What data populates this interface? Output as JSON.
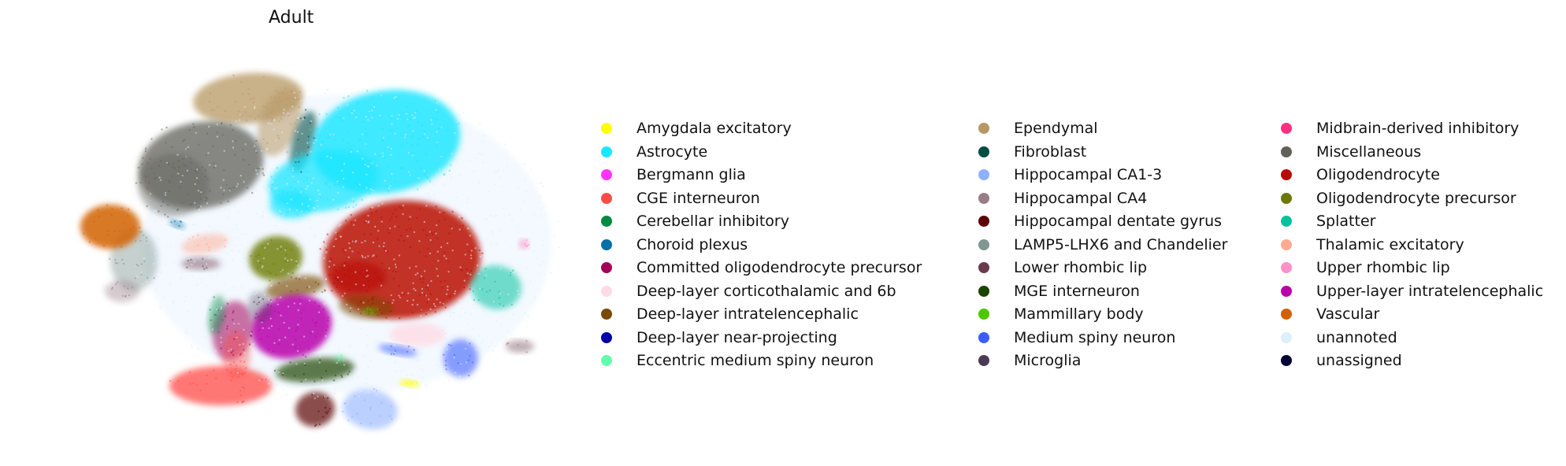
{
  "chart_data": {
    "type": "scatter",
    "title": "Adult",
    "xlabel": "",
    "ylabel": "",
    "axes_visible": false,
    "legend_placement": "right",
    "legend_columns": 3,
    "series": [
      {
        "name": "Amygdala excitatory",
        "color": "#ffff00"
      },
      {
        "name": "Astrocyte",
        "color": "#1ce6ff"
      },
      {
        "name": "Bergmann glia",
        "color": "#ff34ff"
      },
      {
        "name": "CGE interneuron",
        "color": "#ff4a46"
      },
      {
        "name": "Cerebellar inhibitory",
        "color": "#008941"
      },
      {
        "name": "Choroid plexus",
        "color": "#006fa6"
      },
      {
        "name": "Committed oligodendrocyte precursor",
        "color": "#a30059"
      },
      {
        "name": "Deep-layer corticothalamic and 6b",
        "color": "#ffdbe5"
      },
      {
        "name": "Deep-layer intratelencephalic",
        "color": "#7a4900"
      },
      {
        "name": "Deep-layer near-projecting",
        "color": "#0000a6"
      },
      {
        "name": "Eccentric medium spiny neuron",
        "color": "#63ffac"
      },
      {
        "name": "Ependymal",
        "color": "#b79762"
      },
      {
        "name": "Fibroblast",
        "color": "#004d43"
      },
      {
        "name": "Hippocampal CA1-3",
        "color": "#8fb0ff"
      },
      {
        "name": "Hippocampal CA4",
        "color": "#997d87"
      },
      {
        "name": "Hippocampal dentate gyrus",
        "color": "#5a0007"
      },
      {
        "name": "LAMP5-LHX6 and Chandelier",
        "color": "#809693"
      },
      {
        "name": "Lower rhombic lip",
        "color": "#6a3a4c"
      },
      {
        "name": "MGE interneuron",
        "color": "#1b4400"
      },
      {
        "name": "Mammillary body",
        "color": "#4fc601"
      },
      {
        "name": "Medium spiny neuron",
        "color": "#3b5dff"
      },
      {
        "name": "Microglia",
        "color": "#4a3b53"
      },
      {
        "name": "Midbrain-derived inhibitory",
        "color": "#ff2f80"
      },
      {
        "name": "Miscellaneous",
        "color": "#61615a"
      },
      {
        "name": "Oligodendrocyte",
        "color": "#ba0900"
      },
      {
        "name": "Oligodendrocyte precursor",
        "color": "#6b7900"
      },
      {
        "name": "Splatter",
        "color": "#00c2a0"
      },
      {
        "name": "Thalamic excitatory",
        "color": "#ffaa92"
      },
      {
        "name": "Upper rhombic lip",
        "color": "#ff90c9"
      },
      {
        "name": "Upper-layer intratelencephalic",
        "color": "#b903aa"
      },
      {
        "name": "Vascular",
        "color": "#d16100"
      },
      {
        "name": "unannoted",
        "color": "#ddefff"
      },
      {
        "name": "unassigned",
        "color": "#000035"
      }
    ]
  }
}
